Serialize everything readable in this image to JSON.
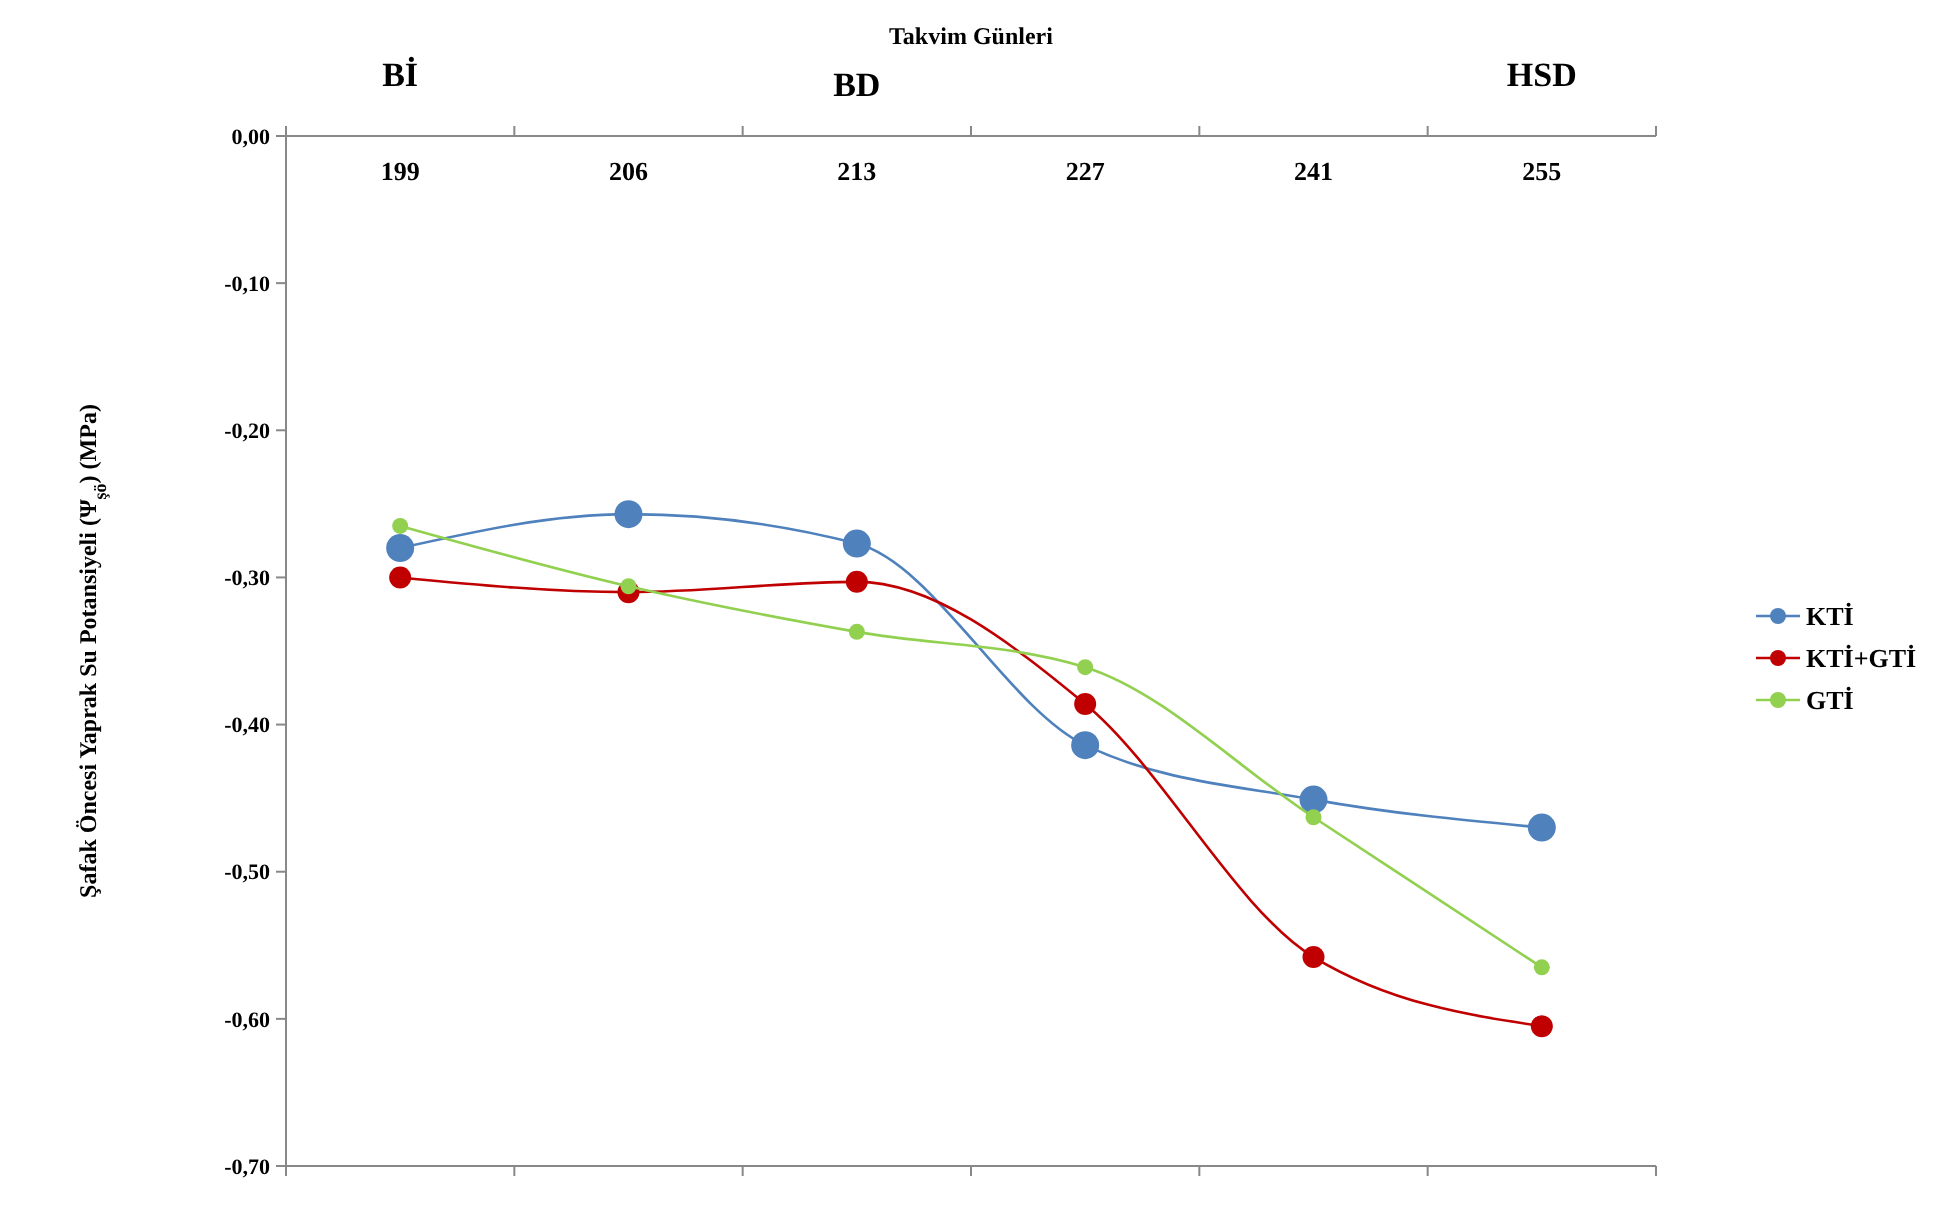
{
  "chart_data": {
    "type": "line",
    "xlabel": "Takvim Günleri",
    "ylabel": "Şafak Öncesi Yaprak Su Potansiyeli (Ψ$_{şö}$) (MPa)",
    "categories": [
      "199",
      "206",
      "213",
      "227",
      "241",
      "255"
    ],
    "series": [
      {
        "name": "KTİ",
        "color": "#4f81bd",
        "values": [
          -0.28,
          -0.257,
          -0.277,
          -0.414,
          -0.451,
          -0.47
        ]
      },
      {
        "name": "KTİ+GTİ",
        "color": "#c00000",
        "values": [
          -0.3,
          -0.31,
          -0.303,
          -0.386,
          -0.558,
          -0.605
        ]
      },
      {
        "name": "GTİ",
        "color": "#92d050",
        "values": [
          -0.265,
          -0.306,
          -0.337,
          -0.361,
          -0.463,
          -0.565
        ]
      }
    ],
    "ylim": [
      -0.7,
      0
    ],
    "yticks": [
      {
        "value": 0,
        "label": "0,00"
      },
      {
        "value": -0.1,
        "label": "-0,10"
      },
      {
        "value": -0.2,
        "label": "-0,20"
      },
      {
        "value": -0.3,
        "label": "-0,30"
      },
      {
        "value": -0.4,
        "label": "-0,40"
      },
      {
        "value": -0.5,
        "label": "-0,50"
      },
      {
        "value": -0.6,
        "label": "-0,60"
      },
      {
        "value": -0.7,
        "label": "-0,70"
      }
    ],
    "annotations": [
      "Bİ",
      "BD",
      "HSD"
    ],
    "legend": "right",
    "marker": "circle",
    "line_style": "solid",
    "grid": false
  }
}
